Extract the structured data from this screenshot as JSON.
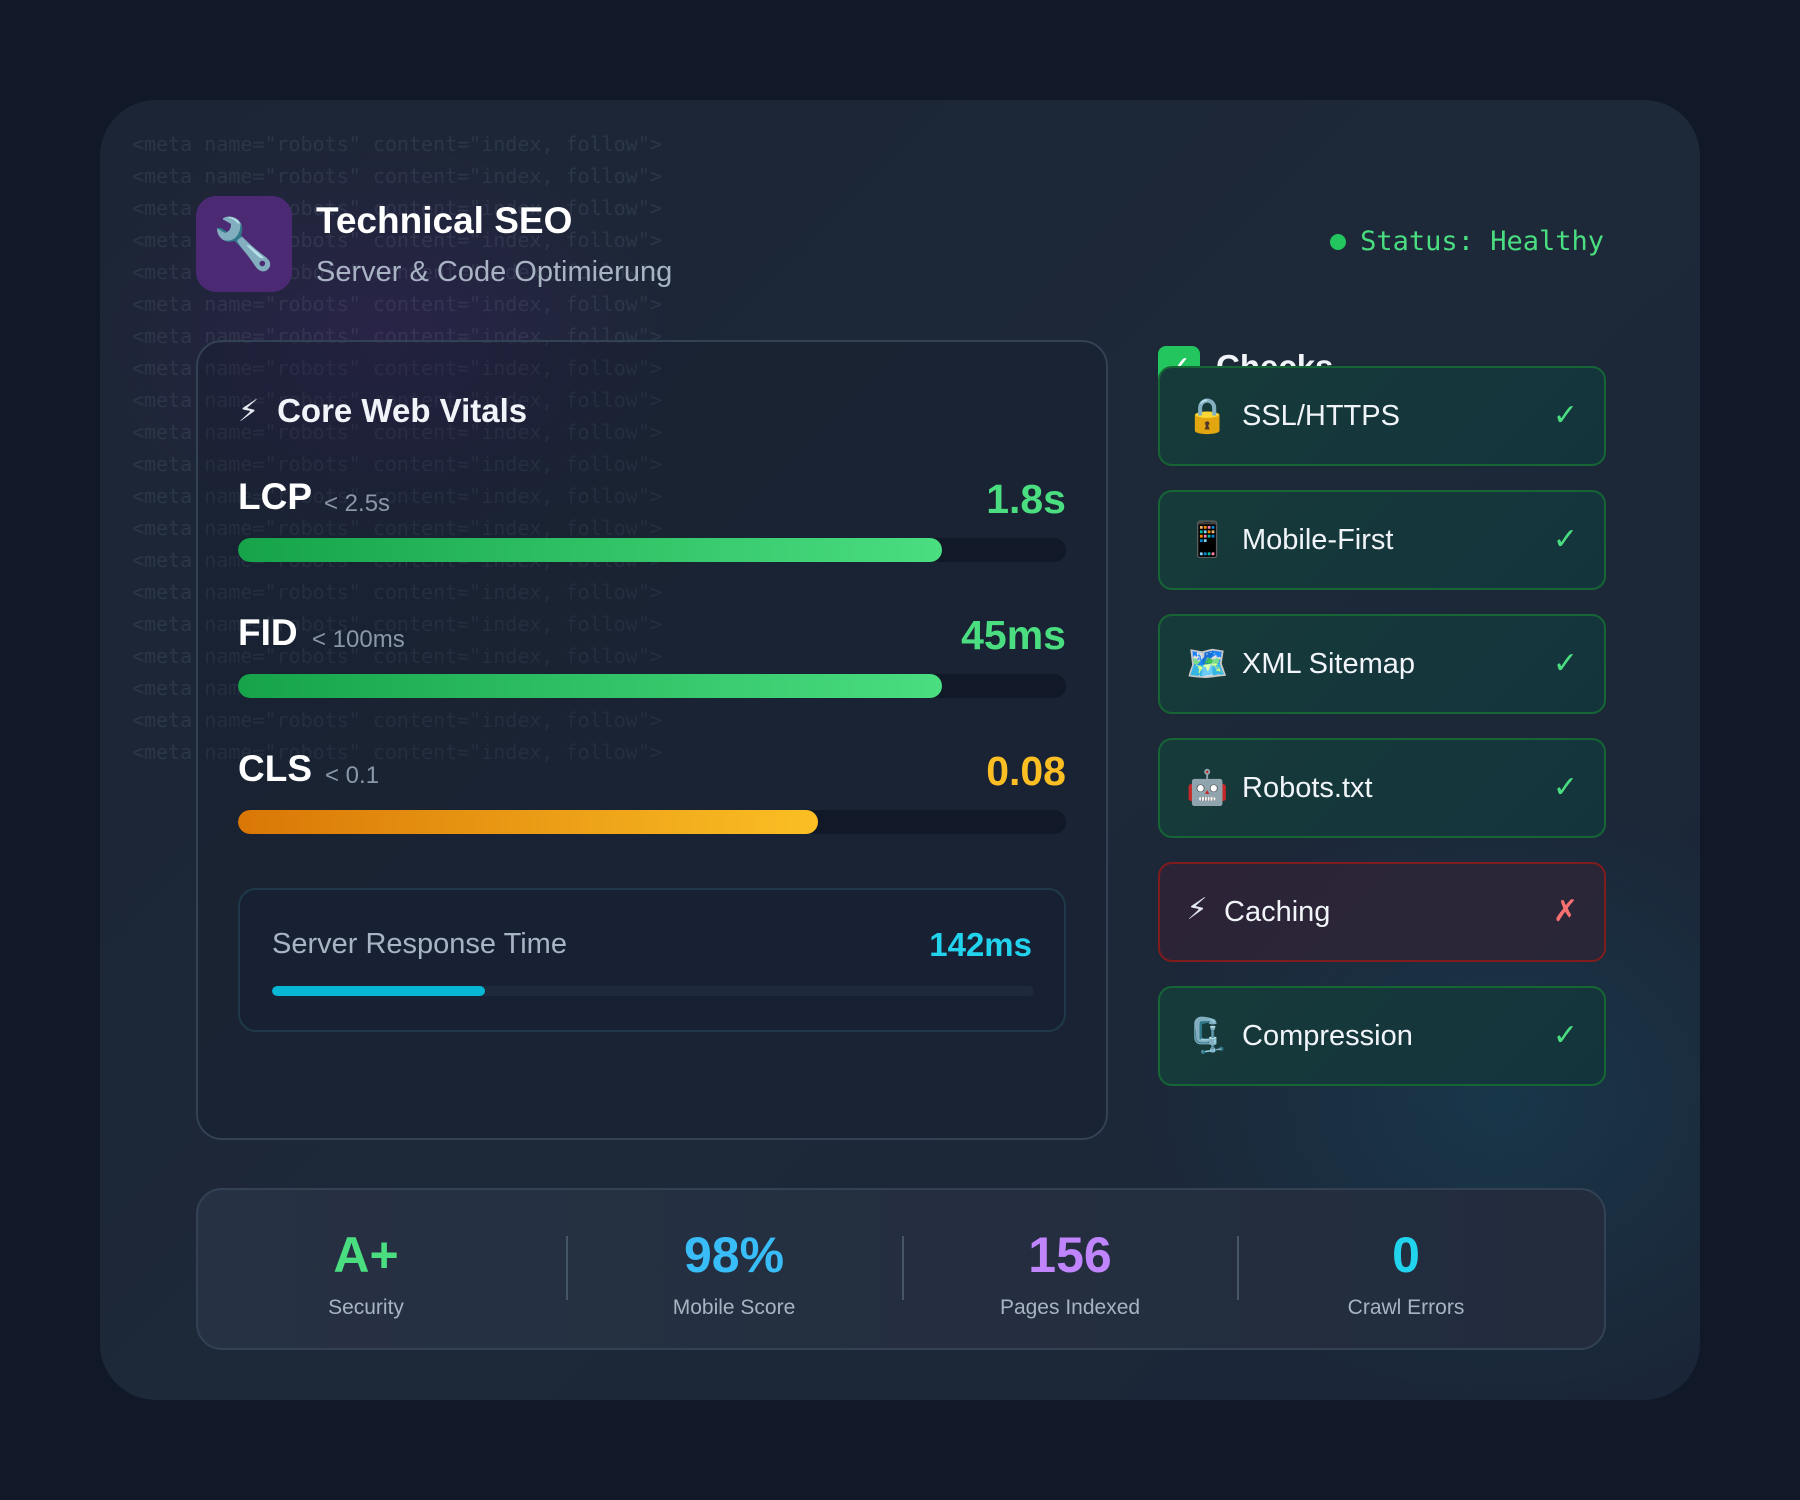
{
  "background_code_line": "<meta name=\"robots\" content=\"index, follow\">",
  "header": {
    "icon": "wrench-icon",
    "title": "Technical SEO",
    "subtitle": "Server & Code Optimierung",
    "status": "Status: Healthy"
  },
  "vitals": {
    "title": "Core Web Vitals",
    "icon": "lightning-icon",
    "metrics": [
      {
        "name": "LCP",
        "threshold": "< 2.5s",
        "value": "1.8s",
        "fill_percent": 85,
        "color": "#4ade80"
      },
      {
        "name": "FID",
        "threshold": "< 100ms",
        "value": "45ms",
        "fill_percent": 85,
        "color": "#4ade80"
      },
      {
        "name": "CLS",
        "threshold": "< 0.1",
        "value": "0.08",
        "fill_percent": 70,
        "color": "#fbbf24"
      }
    ],
    "server_response": {
      "label": "Server Response Time",
      "value": "142ms",
      "fill_percent": 28,
      "color": "#22d3ee"
    }
  },
  "checks": {
    "title": "Checks",
    "items": [
      {
        "label": "SSL/HTTPS",
        "icon": "lock-icon",
        "status": "pass"
      },
      {
        "label": "Mobile-First",
        "icon": "mobile-phone-icon",
        "status": "pass"
      },
      {
        "label": "XML Sitemap",
        "icon": "map-icon",
        "status": "pass"
      },
      {
        "label": "Robots.txt",
        "icon": "robot-icon",
        "status": "pass"
      },
      {
        "label": "Caching",
        "icon": "lightning-icon",
        "status": "fail"
      },
      {
        "label": "Compression",
        "icon": "clamp-icon",
        "status": "pass"
      }
    ]
  },
  "stats": [
    {
      "value": "A+",
      "label": "Security",
      "color": "#4ade80"
    },
    {
      "value": "98%",
      "label": "Mobile Score",
      "color": "#38bdf8"
    },
    {
      "value": "156",
      "label": "Pages Indexed",
      "color": "#c084fc"
    },
    {
      "value": "0",
      "label": "Crawl Errors",
      "color": "#22d3ee"
    }
  ]
}
